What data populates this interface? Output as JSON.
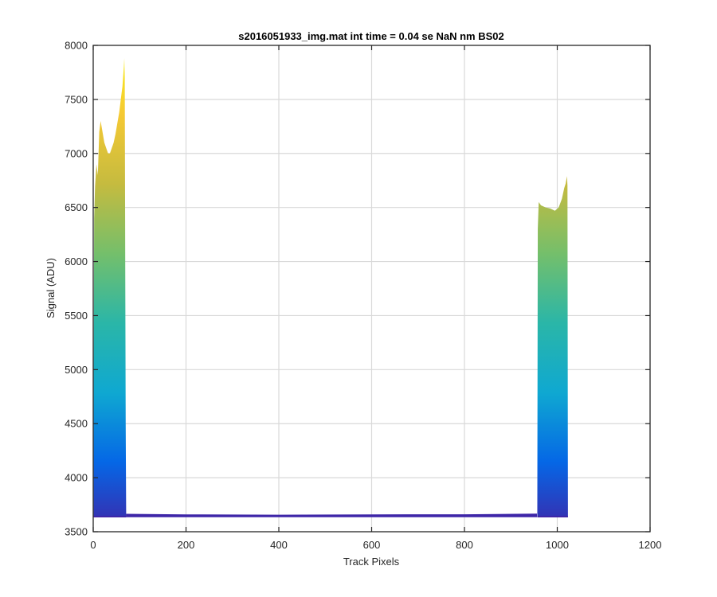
{
  "chart_data": {
    "type": "area",
    "title": "s2016051933_img.mat int time = 0.04 se  NaN nm BS02",
    "xlabel": "Track Pixels",
    "ylabel": "Signal (ADU)",
    "xlim": [
      0,
      1200
    ],
    "ylim": [
      3500,
      8000
    ],
    "xticks": [
      0,
      200,
      400,
      600,
      800,
      1000,
      1200
    ],
    "yticks": [
      3500,
      4000,
      4500,
      5000,
      5500,
      6000,
      6500,
      7000,
      7500,
      8000
    ],
    "grid": true,
    "colormap": [
      "#3e26a8",
      "#0567e6",
      "#0fa8d1",
      "#2ab6a8",
      "#74bf6b",
      "#c5bb3f",
      "#f5c934",
      "#f8f216"
    ],
    "series": [
      {
        "baseline": 3640,
        "peak_top": [
          [
            1,
            5000
          ],
          [
            2,
            6400
          ],
          [
            4,
            6700
          ],
          [
            7,
            6900
          ],
          [
            10,
            6800
          ],
          [
            13,
            7200
          ],
          [
            16,
            7300
          ],
          [
            20,
            7200
          ],
          [
            24,
            7100
          ],
          [
            28,
            7050
          ],
          [
            32,
            7000
          ],
          [
            36,
            7000
          ],
          [
            40,
            7050
          ],
          [
            44,
            7100
          ],
          [
            48,
            7180
          ],
          [
            52,
            7280
          ],
          [
            56,
            7380
          ],
          [
            60,
            7520
          ],
          [
            63,
            7620
          ],
          [
            66,
            7800
          ],
          [
            67,
            7880
          ],
          [
            68,
            7700
          ],
          [
            69,
            6000
          ],
          [
            70,
            4500
          ],
          [
            71,
            3665
          ]
        ],
        "floor": [
          [
            72,
            3660
          ],
          [
            200,
            3655
          ],
          [
            400,
            3652
          ],
          [
            600,
            3655
          ],
          [
            800,
            3656
          ],
          [
            955,
            3662
          ]
        ],
        "right_block_top": [
          [
            957,
            3700
          ],
          [
            958,
            6300
          ],
          [
            960,
            6550
          ],
          [
            965,
            6520
          ],
          [
            975,
            6500
          ],
          [
            985,
            6490
          ],
          [
            995,
            6470
          ],
          [
            1003,
            6500
          ],
          [
            1010,
            6580
          ],
          [
            1015,
            6680
          ],
          [
            1018,
            6720
          ],
          [
            1021,
            6790
          ],
          [
            1022,
            6700
          ],
          [
            1023,
            3650
          ]
        ]
      }
    ]
  }
}
